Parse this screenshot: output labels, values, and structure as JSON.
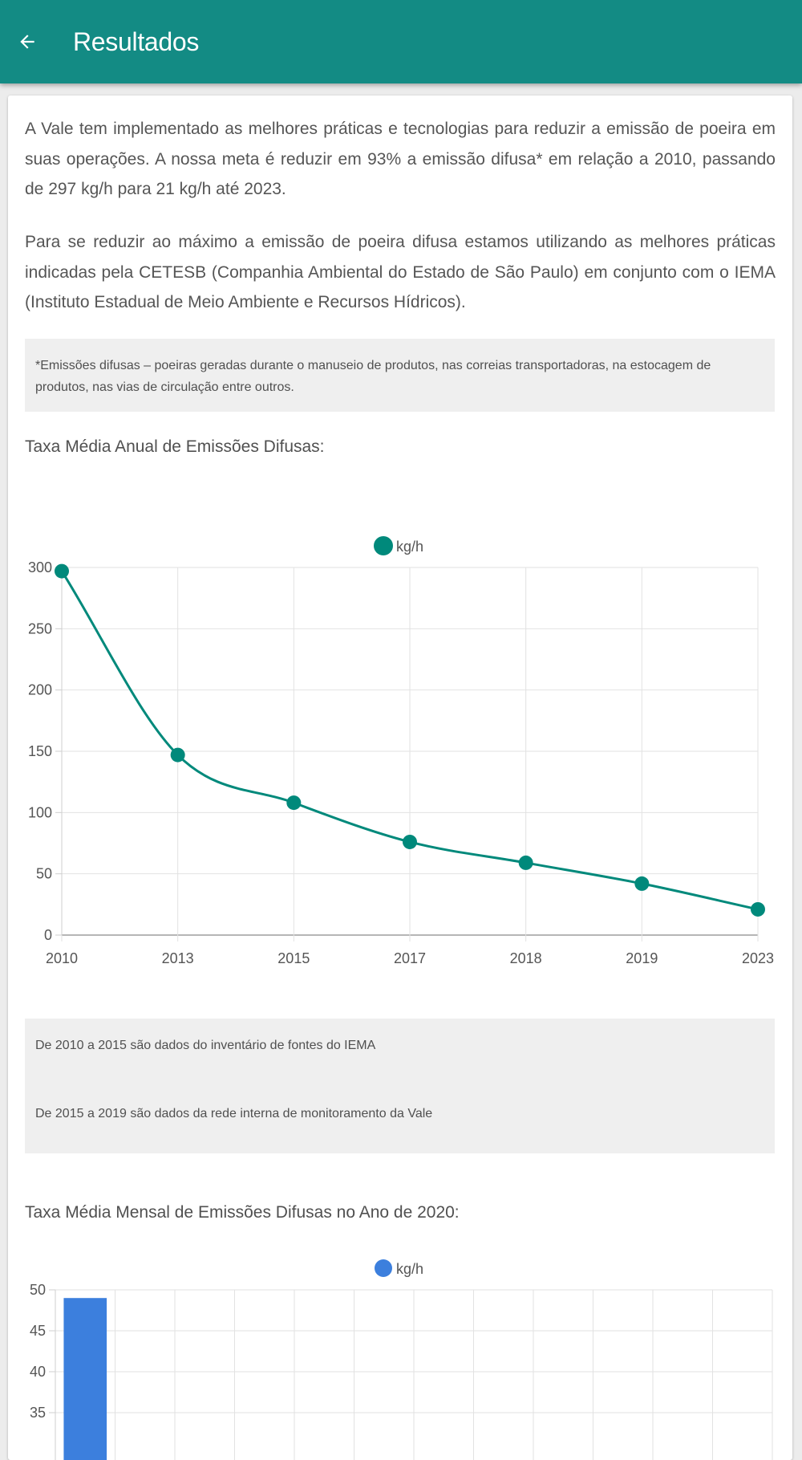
{
  "appbar": {
    "title": "Resultados",
    "back_icon": "arrow-left-icon",
    "background": "#138b84"
  },
  "content": {
    "paragraph1": "A Vale tem implementado as melhores práticas e tecnologias para reduzir a emissão de poeira em suas operações. A nossa meta é reduzir em 93% a emissão difusa* em relação a 2010, passando de 297 kg/h para 21 kg/h até 2023.",
    "paragraph2": "Para se reduzir ao máximo a emissão de poeira difusa estamos utilizando as melhores práticas indicadas pela CETESB (Companhia Ambiental do Estado de São Paulo) em conjunto com o IEMA (Instituto Estadual de Meio Ambiente e Recursos Hídricos).",
    "footnote": "*Emissões difusas – poeiras geradas durante o manuseio de produtos, nas correias transportadoras, na estocagem de produtos, nas vias de circulação entre outros.",
    "section1_title": "Taxa Média Anual de Emissões Difusas:",
    "source_note1": "De 2010 a 2015 são dados do inventário de fontes do IEMA",
    "source_note2": "De 2015 a 2019 são dados da rede interna de monitoramento da Vale",
    "section2_title": "Taxa Média Mensal de Emissões Difusas no Ano de 2020:"
  },
  "chart_data": [
    {
      "type": "line",
      "title": "Taxa Média Anual de Emissões Difusas:",
      "categories": [
        "2010",
        "2013",
        "2015",
        "2017",
        "2018",
        "2019",
        "2023"
      ],
      "series": [
        {
          "name": "kg/h",
          "values": [
            297,
            147,
            108,
            76,
            59,
            42,
            21
          ],
          "color": "#00897b"
        }
      ],
      "ylim": [
        0,
        300
      ],
      "yticks": [
        0,
        50,
        100,
        150,
        200,
        250,
        300
      ],
      "grid": true,
      "legend": "top-center",
      "smooth": true
    },
    {
      "type": "bar",
      "title": "Taxa Média Mensal de Emissões Difusas no Ano de 2020:",
      "series": [
        {
          "name": "kg/h",
          "values": [
            49
          ],
          "color": "#3c7fdd"
        }
      ],
      "category_count": 12,
      "visible_yticks": [
        50,
        45,
        40,
        35
      ],
      "grid": true,
      "legend": "top-center"
    }
  ]
}
